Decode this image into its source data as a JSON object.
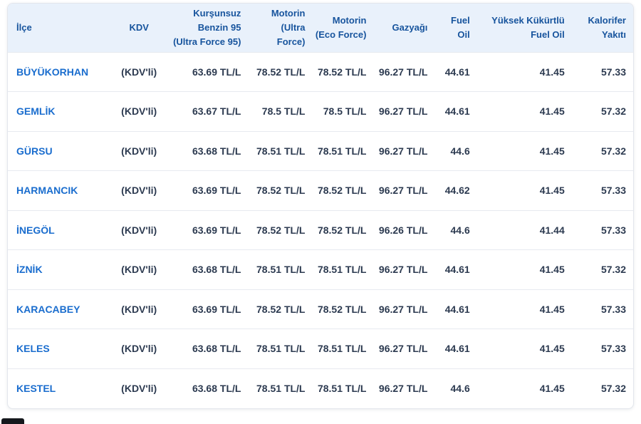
{
  "colors": {
    "header_bg": "#e9f1fb",
    "header_text": "#17549d",
    "district_link": "#1a6dce",
    "value_text": "#2c3a50",
    "row_border": "#e7eaf0",
    "card_border": "#e3e6ec",
    "corner_widget": "#15181d",
    "page_bg": "#ffffff"
  },
  "table": {
    "headers": {
      "district": "İlçe",
      "kdv": "KDV",
      "benzin": "Kurşunsuz\nBenzin 95\n(Ultra Force 95)",
      "motorin_ultra": "Motorin\n(Ultra\nForce)",
      "motorin_eco": "Motorin\n(Eco Force)",
      "gazyagi": "Gazyağı",
      "fuel_oil": "Fuel\nOil",
      "yuksek": "Yüksek Kükürtlü\nFuel Oil",
      "kalorifer": "Kalorifer\nYakıtı"
    },
    "rows": [
      {
        "district": "BÜYÜKORHAN",
        "kdv": "(KDV'li)",
        "benzin": "63.69 TL/L",
        "motorin_ultra": "78.52 TL/L",
        "motorin_eco": "78.52 TL/L",
        "gazyagi": "96.27 TL/L",
        "fuel_oil": "44.61",
        "yuksek": "41.45",
        "kalorifer": "57.33"
      },
      {
        "district": "GEMLİK",
        "kdv": "(KDV'li)",
        "benzin": "63.67 TL/L",
        "motorin_ultra": "78.5 TL/L",
        "motorin_eco": "78.5 TL/L",
        "gazyagi": "96.27 TL/L",
        "fuel_oil": "44.61",
        "yuksek": "41.45",
        "kalorifer": "57.32"
      },
      {
        "district": "GÜRSU",
        "kdv": "(KDV'li)",
        "benzin": "63.68 TL/L",
        "motorin_ultra": "78.51 TL/L",
        "motorin_eco": "78.51 TL/L",
        "gazyagi": "96.27 TL/L",
        "fuel_oil": "44.6",
        "yuksek": "41.45",
        "kalorifer": "57.32"
      },
      {
        "district": "HARMANCIK",
        "kdv": "(KDV'li)",
        "benzin": "63.69 TL/L",
        "motorin_ultra": "78.52 TL/L",
        "motorin_eco": "78.52 TL/L",
        "gazyagi": "96.27 TL/L",
        "fuel_oil": "44.62",
        "yuksek": "41.45",
        "kalorifer": "57.33"
      },
      {
        "district": "İNEGÖL",
        "kdv": "(KDV'li)",
        "benzin": "63.69 TL/L",
        "motorin_ultra": "78.52 TL/L",
        "motorin_eco": "78.52 TL/L",
        "gazyagi": "96.26 TL/L",
        "fuel_oil": "44.6",
        "yuksek": "41.44",
        "kalorifer": "57.33"
      },
      {
        "district": "İZNİK",
        "kdv": "(KDV'li)",
        "benzin": "63.68 TL/L",
        "motorin_ultra": "78.51 TL/L",
        "motorin_eco": "78.51 TL/L",
        "gazyagi": "96.27 TL/L",
        "fuel_oil": "44.61",
        "yuksek": "41.45",
        "kalorifer": "57.32"
      },
      {
        "district": "KARACABEY",
        "kdv": "(KDV'li)",
        "benzin": "63.69 TL/L",
        "motorin_ultra": "78.52 TL/L",
        "motorin_eco": "78.52 TL/L",
        "gazyagi": "96.27 TL/L",
        "fuel_oil": "44.61",
        "yuksek": "41.45",
        "kalorifer": "57.33"
      },
      {
        "district": "KELES",
        "kdv": "(KDV'li)",
        "benzin": "63.68 TL/L",
        "motorin_ultra": "78.51 TL/L",
        "motorin_eco": "78.51 TL/L",
        "gazyagi": "96.27 TL/L",
        "fuel_oil": "44.61",
        "yuksek": "41.45",
        "kalorifer": "57.33"
      },
      {
        "district": "KESTEL",
        "kdv": "(KDV'li)",
        "benzin": "63.68 TL/L",
        "motorin_ultra": "78.51 TL/L",
        "motorin_eco": "78.51 TL/L",
        "gazyagi": "96.27 TL/L",
        "fuel_oil": "44.6",
        "yuksek": "41.45",
        "kalorifer": "57.32"
      }
    ]
  }
}
